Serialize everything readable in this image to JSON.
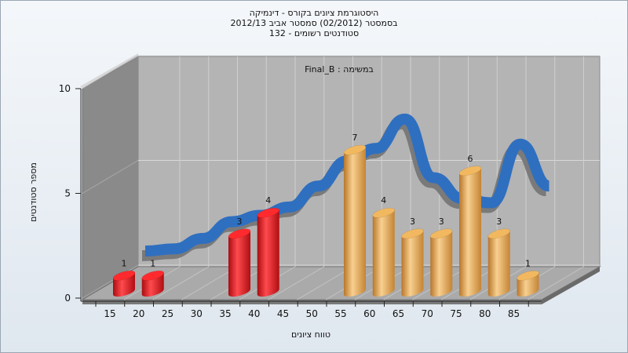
{
  "chart_data": {
    "type": "bar",
    "title_lines": [
      "היסטוגרמת ציונים בקורס - דינמיקה",
      "בסמסטר  (02/2012)  סמסטר אביב 2012/13",
      "סטודנטים רשומים - 132"
    ],
    "annotation": "במשימה : Final_B",
    "xlabel": "טווח ציונים",
    "ylabel": "מספר סטודנטים",
    "categories": [
      "15",
      "20",
      "25",
      "30",
      "35",
      "40",
      "45",
      "50",
      "55",
      "60",
      "65",
      "70",
      "75",
      "80",
      "85"
    ],
    "ylim": [
      0,
      10
    ],
    "yticks": [
      0,
      5,
      10
    ],
    "bars": [
      {
        "x": "15",
        "value": 1,
        "label": "1",
        "color": "red"
      },
      {
        "x": "20",
        "value": 1,
        "label": "1",
        "color": "red"
      },
      {
        "x": "35",
        "value": 3,
        "label": "3",
        "color": "red"
      },
      {
        "x": "40",
        "value": 4,
        "label": "4",
        "color": "red"
      },
      {
        "x": "55",
        "value": 7,
        "label": "7",
        "color": "orange"
      },
      {
        "x": "60",
        "value": 4,
        "label": "4",
        "color": "orange"
      },
      {
        "x": "65",
        "value": 3,
        "label": "3",
        "color": "orange"
      },
      {
        "x": "70",
        "value": 3,
        "label": "3",
        "color": "orange"
      },
      {
        "x": "75",
        "value": 6,
        "label": "6",
        "color": "orange"
      },
      {
        "x": "80",
        "value": 3,
        "label": "3",
        "color": "orange"
      },
      {
        "x": "85",
        "value": 1,
        "label": "1",
        "color": "orange"
      }
    ],
    "curve": {
      "x": [
        15,
        20,
        25,
        30,
        35,
        40,
        45,
        50,
        55,
        60,
        65,
        70,
        75,
        80,
        85
      ],
      "y": [
        1.5,
        1.6,
        2.1,
        2.9,
        3.2,
        3.6,
        4.6,
        5.8,
        6.4,
        7.8,
        5.0,
        4.0,
        3.8,
        6.6,
        4.6
      ]
    },
    "colors": {
      "red": "#e8161c",
      "orange": "#e8a040",
      "curve_blue": "#2f6fc0",
      "curve_grey": "#7a7a7a",
      "back_wall": "#b4b4b4",
      "side_wall": "#888888",
      "floor": "#a9a9a9"
    },
    "grid": true
  }
}
